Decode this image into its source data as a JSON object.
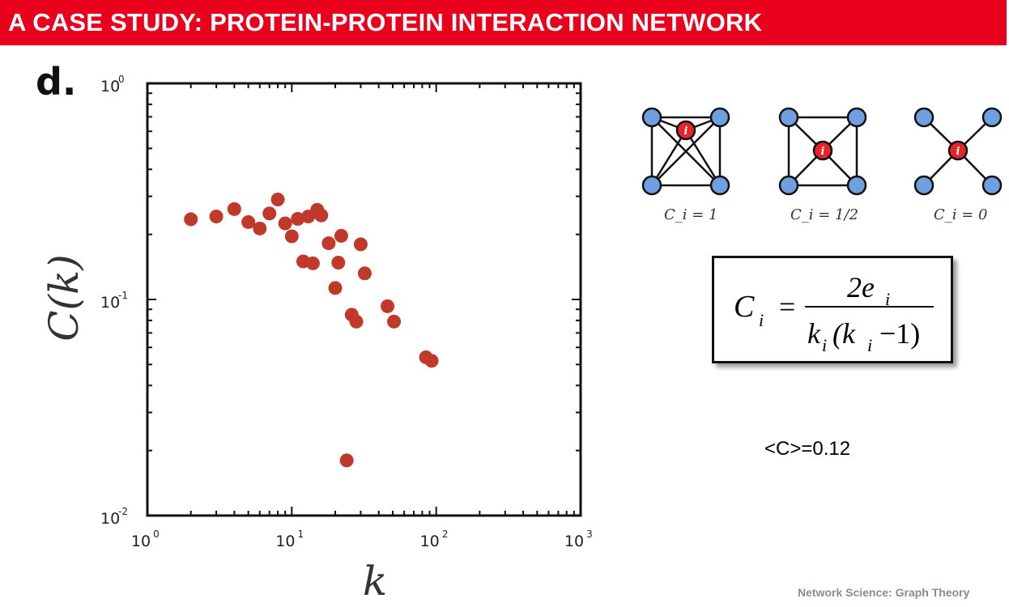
{
  "header": {
    "title": "A CASE STUDY: PROTEIN-PROTEIN INTERACTION NETWORK"
  },
  "panel_label": "d.",
  "chart_data": {
    "type": "scatter",
    "xscale": "log",
    "yscale": "log",
    "xlim": [
      1,
      1000
    ],
    "ylim": [
      0.01,
      1
    ],
    "x_ticks": [
      {
        "base": "10",
        "exp": "0"
      },
      {
        "base": "10",
        "exp": "1"
      },
      {
        "base": "10",
        "exp": "2"
      },
      {
        "base": "10",
        "exp": "3"
      }
    ],
    "y_ticks": [
      {
        "base": "10",
        "exp": "-2"
      },
      {
        "base": "10",
        "exp": "-1"
      },
      {
        "base": "10",
        "exp": "0"
      }
    ],
    "xlabel": "k",
    "ylabel": "C(k)",
    "marker_color": "#c0392b",
    "points": [
      [
        2.0,
        0.235
      ],
      [
        3.0,
        0.242
      ],
      [
        4.0,
        0.262
      ],
      [
        5.0,
        0.228
      ],
      [
        6.0,
        0.213
      ],
      [
        7.0,
        0.25
      ],
      [
        8.0,
        0.29
      ],
      [
        9.0,
        0.225
      ],
      [
        10.0,
        0.196
      ],
      [
        11.0,
        0.236
      ],
      [
        12.0,
        0.15
      ],
      [
        13.0,
        0.242
      ],
      [
        14.0,
        0.147
      ],
      [
        15.0,
        0.26
      ],
      [
        16.0,
        0.245
      ],
      [
        18.0,
        0.182
      ],
      [
        20.0,
        0.113
      ],
      [
        21.0,
        0.148
      ],
      [
        22.0,
        0.197
      ],
      [
        24.0,
        0.018
      ],
      [
        26.0,
        0.085
      ],
      [
        28.0,
        0.079
      ],
      [
        30.0,
        0.18
      ],
      [
        32.0,
        0.132
      ],
      [
        46.0,
        0.093
      ],
      [
        51.0,
        0.079
      ],
      [
        85.0,
        0.054
      ],
      [
        93.0,
        0.052
      ]
    ]
  },
  "clustering_examples": [
    {
      "caption": "C_i = 1"
    },
    {
      "caption": "C_i = 1/2"
    },
    {
      "caption": "C_i = 0"
    }
  ],
  "node_label": "i",
  "colors": {
    "neighbor_node": "#6f9fe0",
    "center_node": "#e8232a",
    "banner": "#e8001c"
  },
  "formula": {
    "lhs": "C",
    "lhs_sub": "i",
    "equals": "=",
    "numerator": "2e",
    "numerator_sub": "i",
    "den_k1": "k",
    "den_sub1": "i",
    "den_open": "(k",
    "den_sub2": "i",
    "den_close": "−1)"
  },
  "average": "<C>=0.12",
  "footer": "Network Science: Graph Theory"
}
